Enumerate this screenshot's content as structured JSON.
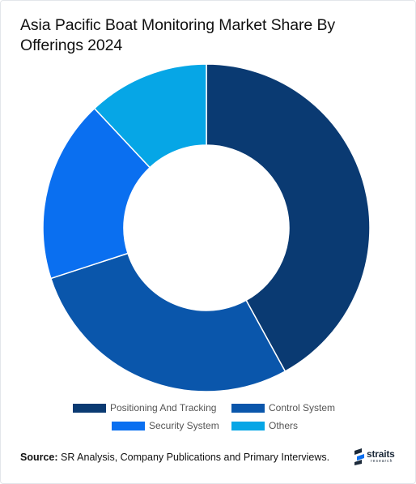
{
  "title": "Asia Pacific Boat Monitoring Market Share By Offerings 2024",
  "chart_data": {
    "type": "pie",
    "donut": true,
    "title": "Asia Pacific Boat Monitoring Market Share By Offerings 2024",
    "categories": [
      "Positioning And Tracking",
      "Control System",
      "Security System",
      "Others"
    ],
    "values": [
      42,
      28,
      18,
      12
    ],
    "unit": "%",
    "colors": [
      "#0a3a72",
      "#0a56ab",
      "#0a6ff0",
      "#06a6e6"
    ],
    "legend_position": "bottom"
  },
  "footer": {
    "source_label": "Source:",
    "source_text": " SR Analysis, Company Publications and Primary Interviews."
  },
  "logo": {
    "name": "straits",
    "sub": "research"
  }
}
